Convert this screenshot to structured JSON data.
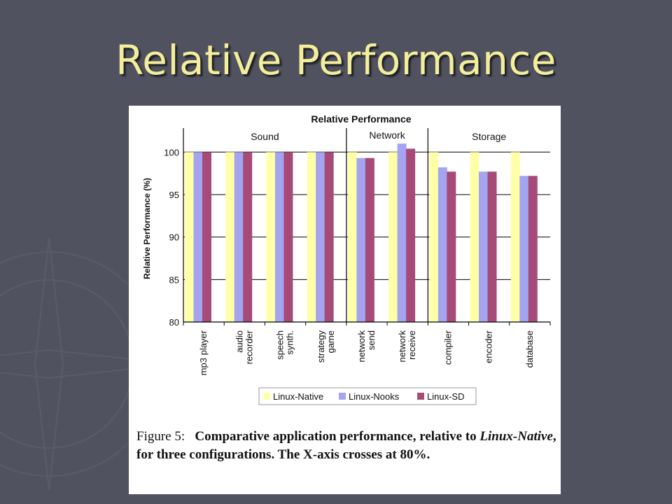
{
  "slide": {
    "title": "Relative Performance",
    "background_color": "#50535f",
    "title_color": "#f4ee9c"
  },
  "caption": {
    "figure_label": "Figure 5:",
    "text_part1": "Comparative application performance, relative to",
    "emphasis": "Linux-Native",
    "text_part2": ", for three configurations. The X-axis crosses at 80%."
  },
  "chart_data": {
    "type": "bar",
    "title": "Relative Performance",
    "xlabel": "",
    "ylabel": "Relative Performance (%)",
    "ylim": [
      80,
      102
    ],
    "yticks": [
      80,
      85,
      90,
      95,
      100
    ],
    "grid": true,
    "legend_position": "bottom",
    "groups": [
      {
        "name": "Sound",
        "categories": [
          "mp3 player",
          "audio recorder",
          "speech synth.",
          "strategy game"
        ]
      },
      {
        "name": "Network",
        "categories": [
          "network send",
          "network receive"
        ]
      },
      {
        "name": "Storage",
        "categories": [
          "compiler",
          "encoder",
          "database"
        ]
      }
    ],
    "categories": [
      "mp3 player",
      "audio recorder",
      "speech synth.",
      "strategy game",
      "network send",
      "network receive",
      "compiler",
      "encoder",
      "database"
    ],
    "category_lines": [
      [
        "mp3 player"
      ],
      [
        "audio",
        "recorder"
      ],
      [
        "speech",
        "synth."
      ],
      [
        "strategy",
        "game"
      ],
      [
        "network",
        "send"
      ],
      [
        "network",
        "receive"
      ],
      [
        "compiler"
      ],
      [
        "encoder"
      ],
      [
        "database"
      ]
    ],
    "series": [
      {
        "name": "Linux-Native",
        "color": "#ffffa8",
        "values": [
          100,
          100,
          100,
          100,
          100,
          100,
          100,
          100,
          100
        ]
      },
      {
        "name": "Linux-Nooks",
        "color": "#a4a4f0",
        "values": [
          100,
          100,
          100,
          100,
          99.3,
          101,
          98.2,
          97.7,
          97.2
        ]
      },
      {
        "name": "Linux-SD",
        "color": "#a64a78",
        "values": [
          100,
          100,
          100,
          100,
          99.3,
          100.4,
          97.7,
          97.7,
          97.2
        ]
      }
    ]
  }
}
